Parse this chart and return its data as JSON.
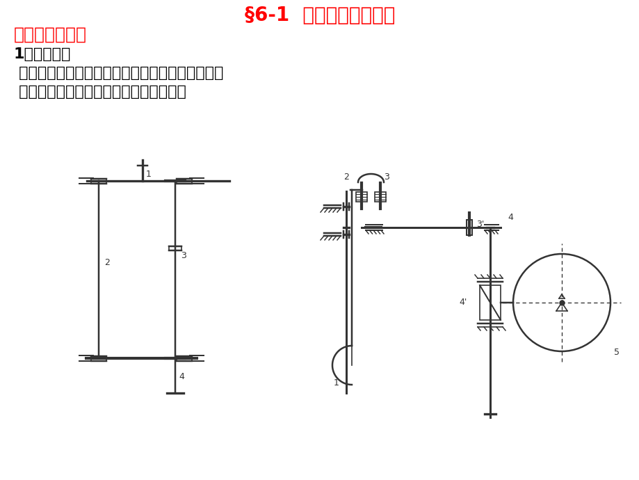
{
  "title": "§6-1  轮系的类型与应用",
  "title_color": "#FF0000",
  "title_fontsize": 20,
  "subtitle": "一、轮系的分类",
  "subtitle_color": "#FF0000",
  "subtitle_fontsize": 18,
  "body_line0": "1．定轴轮系",
  "body_line1": " 轮系运转时，如果各齿轮轴线的位置都固定不动，",
  "body_line2": " 则称之为定轴轮系（或称为普通轮系）。",
  "body_fontsize": 16,
  "body_color": "#000000",
  "bg_color": "#FFFFFF",
  "line_color": "#333333"
}
